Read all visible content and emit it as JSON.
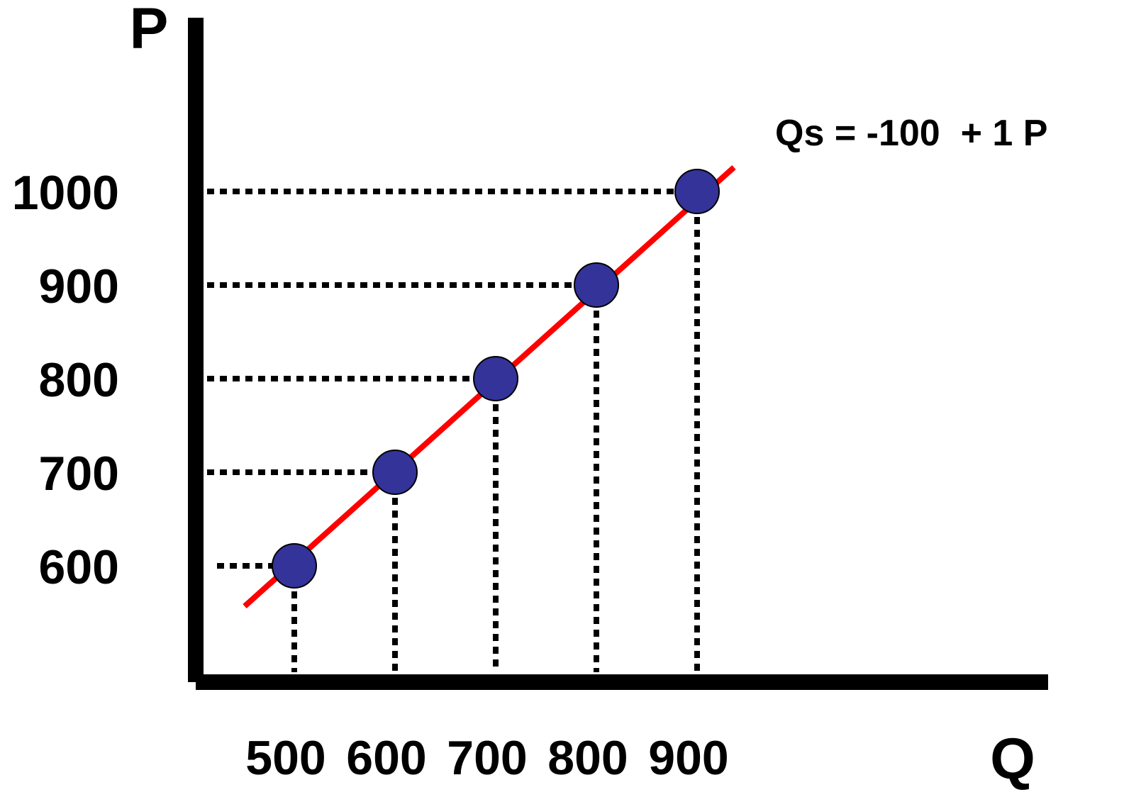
{
  "chart_data": {
    "type": "line",
    "equation": "Qs = -100  + 1 P",
    "xlabel": "Q",
    "ylabel": "P",
    "x_ticks": [
      "500",
      "600",
      "700",
      "800",
      "900"
    ],
    "y_ticks": [
      "600",
      "700",
      "800",
      "900",
      "1000"
    ],
    "points": [
      {
        "q": 500,
        "p": 600
      },
      {
        "q": 600,
        "p": 700
      },
      {
        "q": 700,
        "p": 800
      },
      {
        "q": 800,
        "p": 900
      },
      {
        "q": 900,
        "p": 1000
      }
    ],
    "line_color": "#ff0000",
    "point_color": "#333399",
    "guide_style": "dotted"
  }
}
